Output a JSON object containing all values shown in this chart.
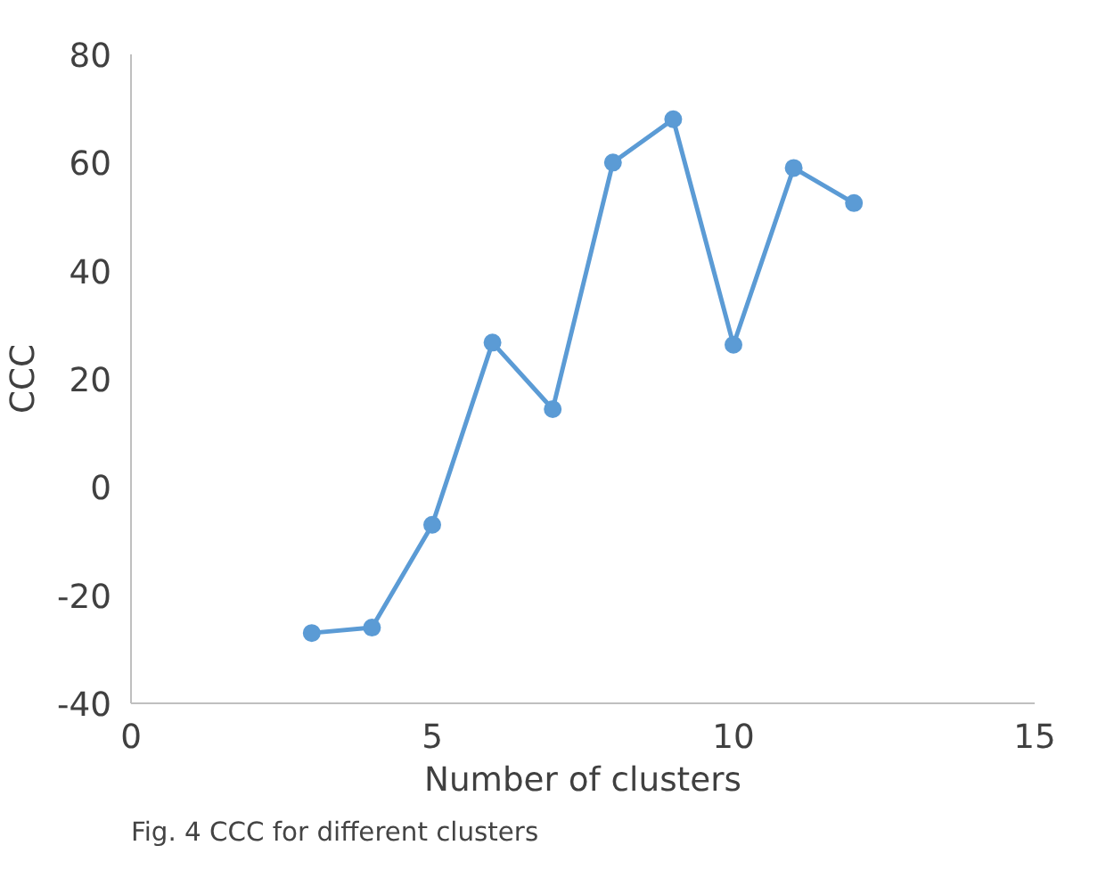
{
  "chart_data": {
    "type": "line",
    "xlabel": "Number of clusters",
    "ylabel": "CCC",
    "x": [
      3,
      4,
      5,
      6,
      7,
      8,
      9,
      10,
      11,
      12
    ],
    "series": [
      {
        "color": "#5b9bd5",
        "values": [
          -27,
          -26,
          -7,
          26.7,
          14.4,
          60,
          68,
          26.3,
          59,
          52.5
        ]
      }
    ],
    "xlim": [
      0,
      15
    ],
    "xticks": [
      0,
      5,
      10,
      15
    ],
    "ylim": [
      -40,
      80
    ],
    "yticks": [
      -40,
      -20,
      0,
      20,
      40,
      60,
      80
    ],
    "grid": false,
    "marker": "circle",
    "line_style": "solid",
    "annotations": [
      "Fig. 4 CCC for different clusters"
    ]
  }
}
